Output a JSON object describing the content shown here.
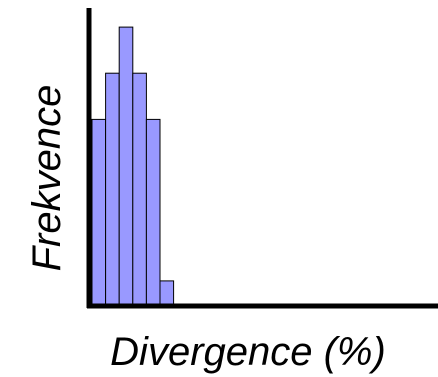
{
  "chart_data": {
    "type": "bar",
    "title": "",
    "xlabel": "Divergence (%)",
    "ylabel": "Frekvence",
    "x_tick_labels": [],
    "y_tick_labels": [],
    "grid": false,
    "legend": "none",
    "values": [
      4,
      5,
      6,
      5,
      4,
      0.5
    ],
    "ylim": [
      0,
      6.5
    ],
    "bar_fill": "#9999ff",
    "bar_stroke": "#000000",
    "axis_color": "#000000"
  }
}
